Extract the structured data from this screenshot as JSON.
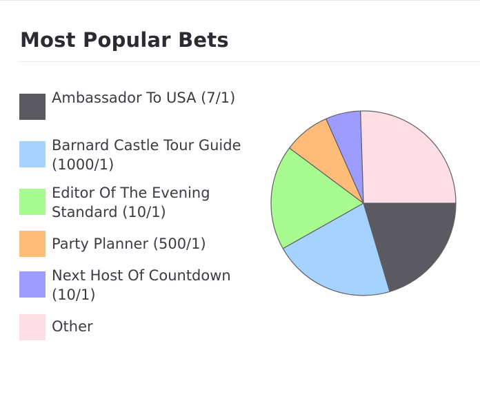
{
  "header": {
    "title": "Most Popular Bets"
  },
  "chart_data": {
    "type": "pie",
    "title": "Most Popular Bets",
    "legend_position": "left",
    "slices": [
      {
        "label": "Ambassador To USA (7/1)",
        "value": 20,
        "color": "#5b5a61"
      },
      {
        "label": "Barnard Castle Tour Guide (1000/1)",
        "value": 21,
        "color": "#a5d2ff"
      },
      {
        "label": "Editor Of The Evening Standard (10/1)",
        "value": 18,
        "color": "#a8fb8f"
      },
      {
        "label": "Party Planner (500/1)",
        "value": 8,
        "color": "#ffbb78"
      },
      {
        "label": "Next Host Of Countdown (10/1)",
        "value": 6,
        "color": "#9d9dff"
      },
      {
        "label": "Other",
        "value": 25,
        "color": "#ffdde5"
      }
    ]
  }
}
